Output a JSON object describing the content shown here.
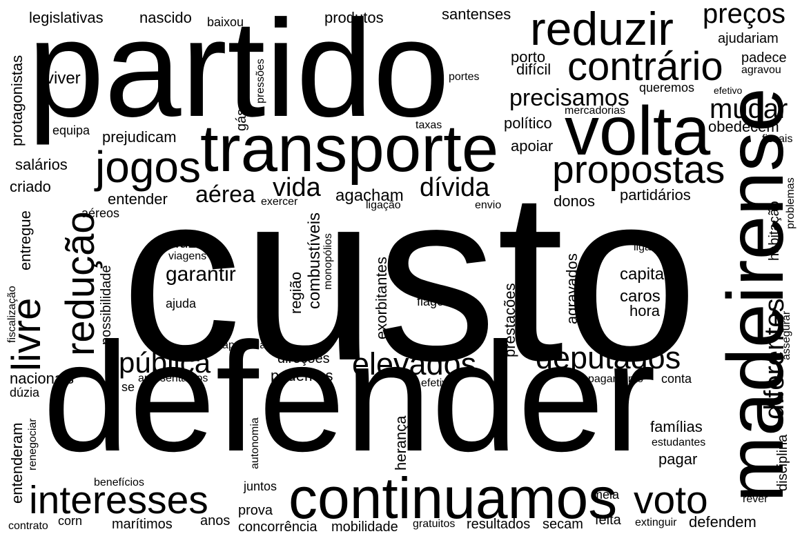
{
  "cloud": {
    "background": "#ffffff",
    "text_color": "#000000",
    "words": [
      "custo",
      "defender",
      "partido",
      "madeirense",
      "transporte",
      "volta",
      "continuamos",
      "reduzir",
      "contrário",
      "jogos",
      "propostas",
      "interesses",
      "livre",
      "redução",
      "voto",
      "deputados",
      "elevados",
      "pública",
      "preços",
      "mudar",
      "vida",
      "dívida",
      "diferentes",
      "precisamos",
      "aérea",
      "garantir",
      "agacham",
      "legislativas",
      "nascido",
      "produtos",
      "santenses",
      "viver",
      "protagonistas",
      "equipa",
      "prejudicam",
      "salários",
      "criado",
      "entender",
      "aéreos",
      "entregue",
      "possibilidade",
      "fiscalização",
      "nacionais",
      "dúzia",
      "entenderam",
      "renegociar",
      "benefícios",
      "contrato",
      "corn",
      "marítimos",
      "anos",
      "prova",
      "concorrência",
      "mobilidade",
      "gratuitos",
      "resultados",
      "secam",
      "feita",
      "extinguir",
      "defendem",
      "meia",
      "rever",
      "disciplina",
      "pagar",
      "estudantes",
      "famílias",
      "conta",
      "pagamento",
      "assegurar",
      "habitação",
      "problemas",
      "fiscais",
      "efetivo",
      "agravou",
      "padece",
      "ajudariam",
      "obedecem",
      "queremos",
      "difícil",
      "porto",
      "portes",
      "mercadorias",
      "político",
      "apoiar",
      "taxas",
      "baixou",
      "pressões",
      "gás",
      "exercer",
      "ligação",
      "envio",
      "donos",
      "partidários",
      "luz",
      "viagens",
      "ajuda",
      "região",
      "combustíveis",
      "monopólios",
      "exorbitantes",
      "flagelo",
      "prestações",
      "agravados",
      "ligar",
      "capital",
      "caros",
      "hora",
      "apertada",
      "direções",
      "podemos",
      "apresentamos",
      "se",
      "efetiva",
      "herança",
      "autonomia",
      "juntos"
    ]
  }
}
